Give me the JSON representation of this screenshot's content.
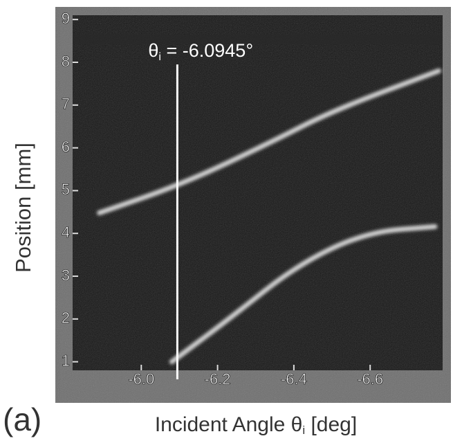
{
  "chart_data": {
    "type": "line",
    "panel_label": "(a)",
    "x_label_parts": [
      "Incident Angle θ",
      "i",
      " [deg]"
    ],
    "y_label": "Position [mm]",
    "xlim": [
      -5.82,
      -6.79
    ],
    "ylim": [
      0.8,
      9.1
    ],
    "xticks": [
      {
        "value": -6,
        "label": "-6.0"
      },
      -6.2,
      -6.4,
      -6.6
    ],
    "yticks": [
      1,
      2,
      3,
      4,
      5,
      6,
      7,
      8,
      9
    ],
    "series": [
      {
        "color": "#f2f2f2",
        "x": [
          -5.89,
          -6.11,
          -6.34,
          -6.5,
          -6.78
        ],
        "values": [
          4.48,
          5.16,
          6.13,
          6.86,
          7.8
        ]
      },
      {
        "color": "#f2f2f2",
        "x": [
          -6.08,
          -6.23,
          -6.41,
          -6.59,
          -6.77
        ],
        "values": [
          1.0,
          2.0,
          3.27,
          4.03,
          4.16
        ]
      }
    ],
    "annotation": {
      "x": -6.0945,
      "top": 7.95,
      "label_parts": [
        "θ",
        "i",
        " = -6.0945°"
      ]
    }
  }
}
